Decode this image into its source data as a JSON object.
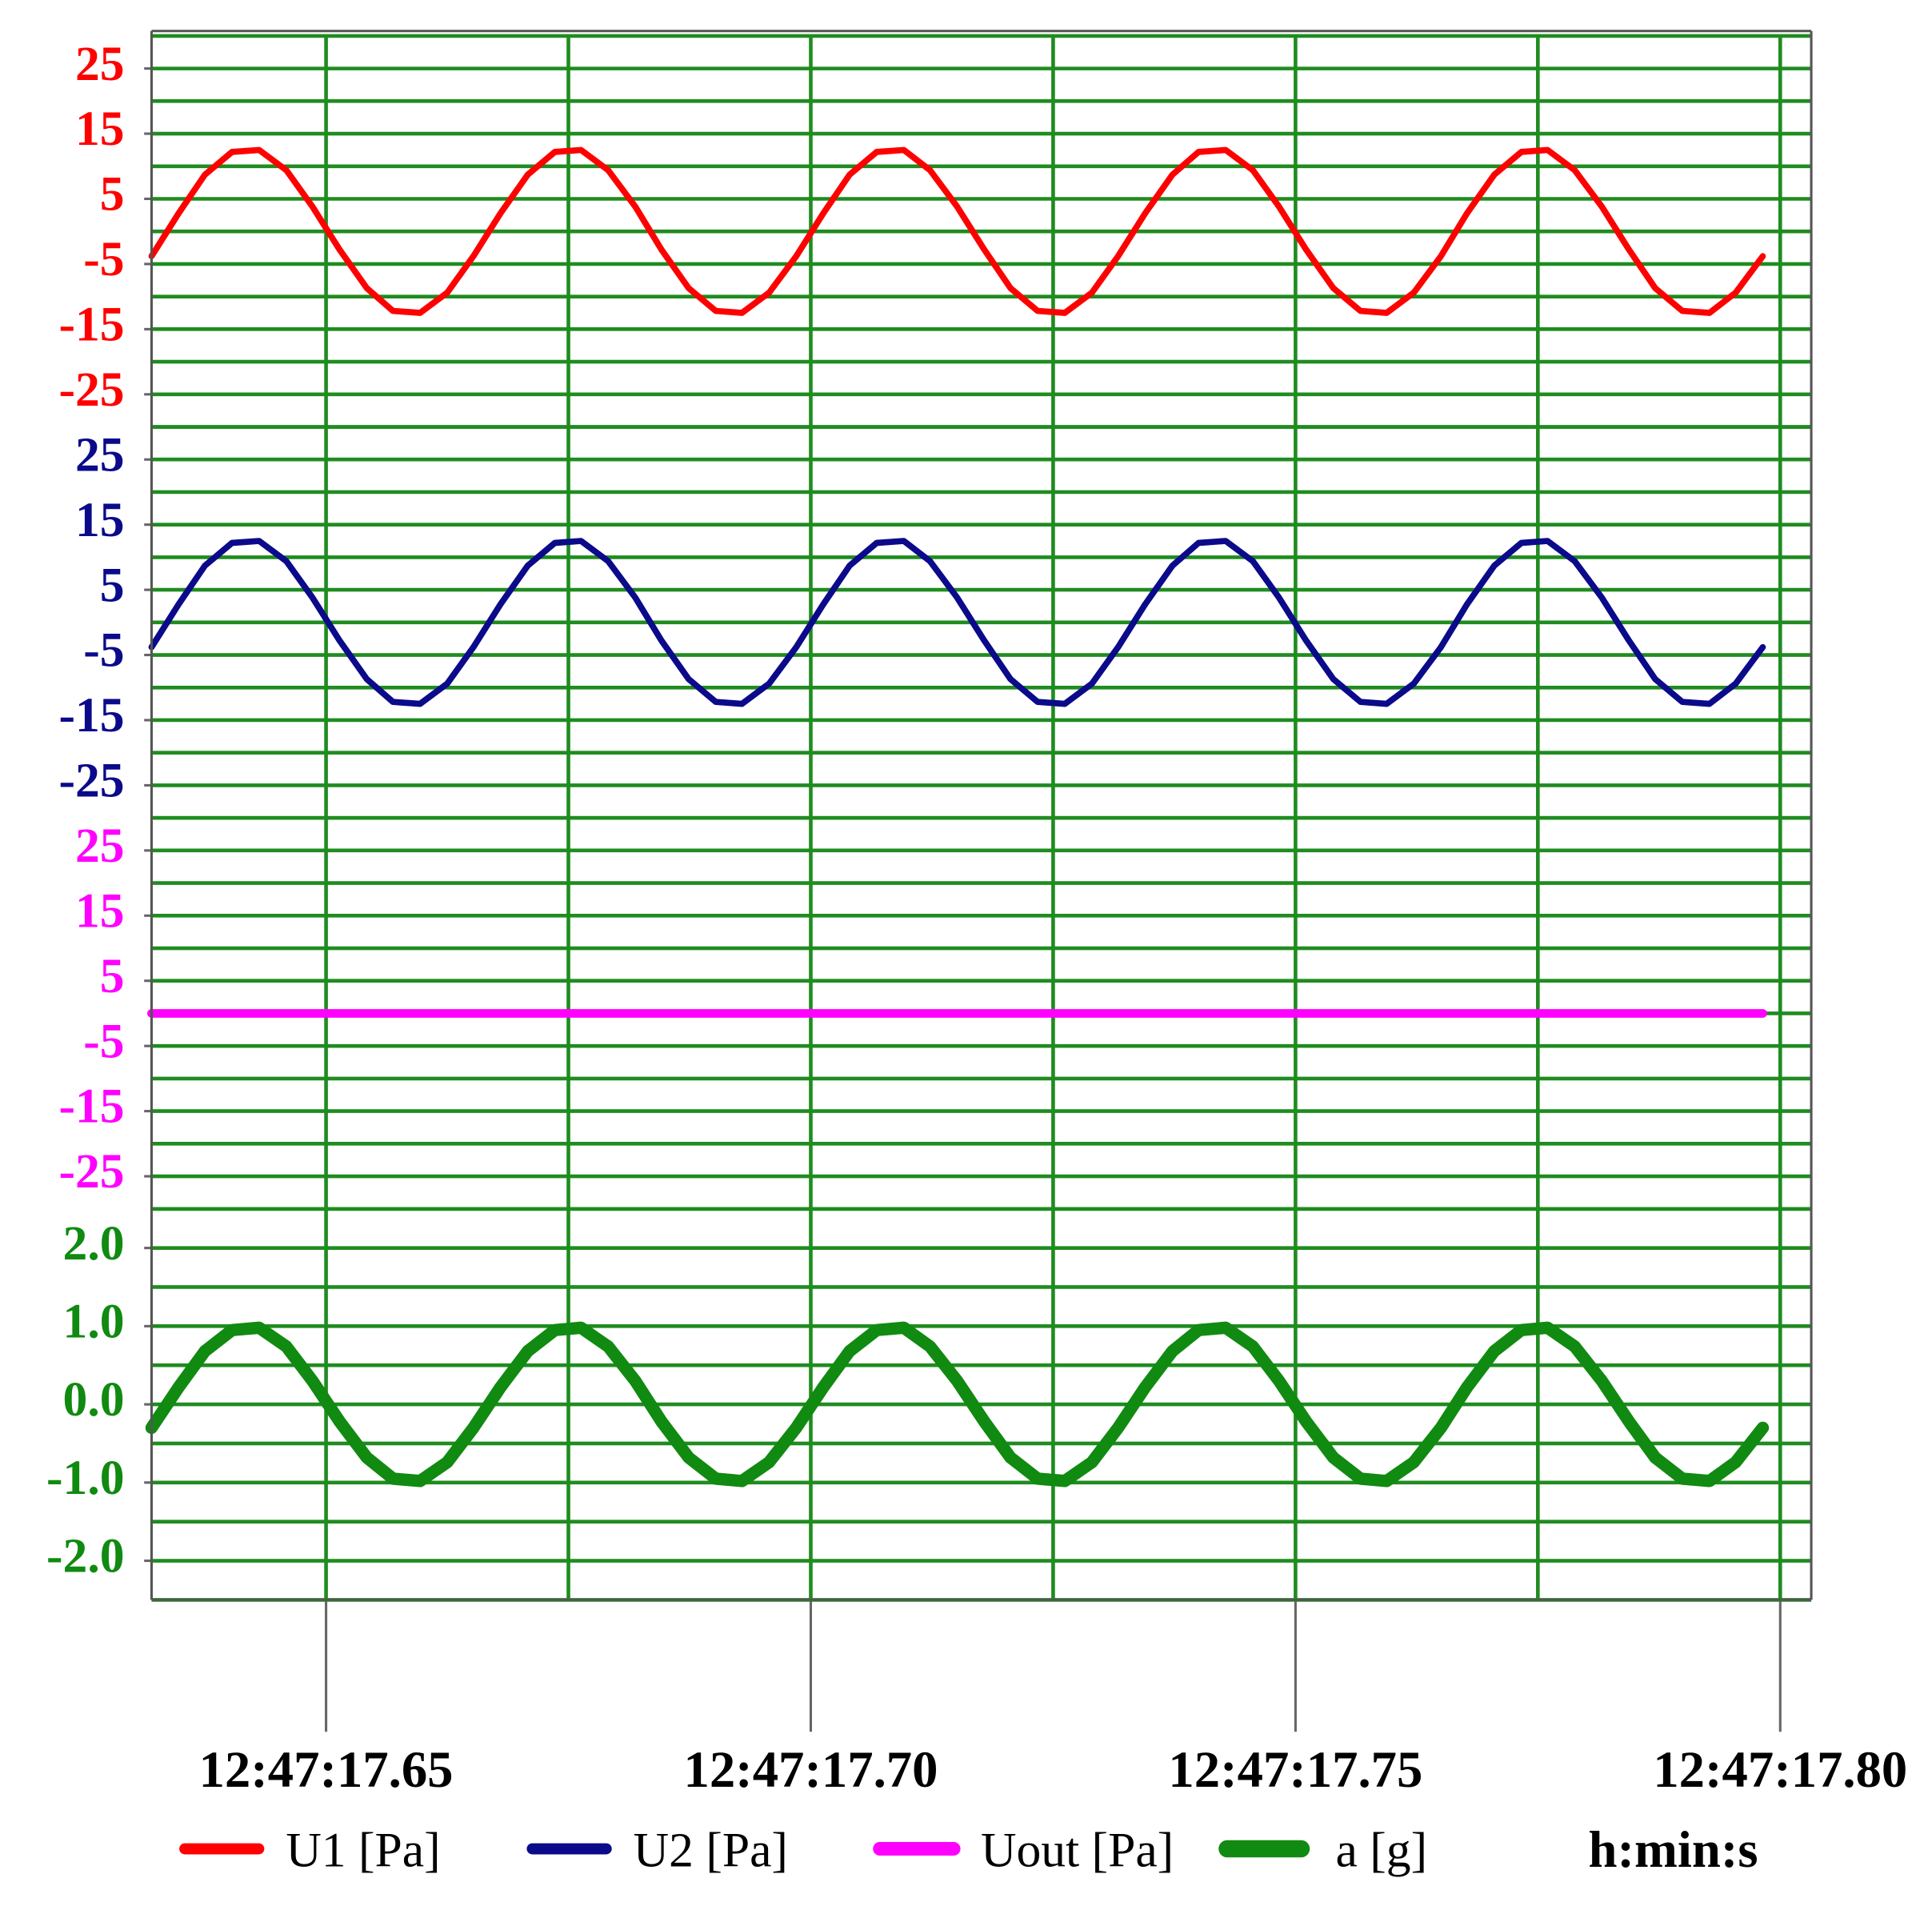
{
  "chart_data": {
    "type": "line",
    "x_label": "h:min:s",
    "x": [
      17.632,
      17.6348,
      17.6375,
      17.6403,
      17.6431,
      17.6459,
      17.6486,
      17.6514,
      17.6542,
      17.6569,
      17.6597,
      17.6625,
      17.6652,
      17.668,
      17.6708,
      17.6736,
      17.6763,
      17.6791,
      17.6819,
      17.6846,
      17.6874,
      17.6902,
      17.6929,
      17.6957,
      17.6985,
      17.7013,
      17.704,
      17.7068,
      17.7096,
      17.7123,
      17.7151,
      17.7179,
      17.7206,
      17.7234,
      17.7262,
      17.729,
      17.7317,
      17.7345,
      17.7373,
      17.74,
      17.7428,
      17.7456,
      17.7483,
      17.7511,
      17.7539,
      17.7567,
      17.7594,
      17.7622,
      17.765,
      17.7677,
      17.7705,
      17.7733,
      17.776,
      17.7788,
      17.7816,
      17.7844,
      17.7871,
      17.7899,
      17.7927,
      17.7954,
      17.7982
    ],
    "xlim": [
      17.632,
      17.8032
    ],
    "xticks": [
      {
        "value": 17.65,
        "label": "12:47:17.65"
      },
      {
        "value": 17.7,
        "label": "12:47:17.70"
      },
      {
        "value": 17.75,
        "label": "12:47:17.75"
      },
      {
        "value": 17.8,
        "label": "12:47:17.80"
      }
    ],
    "xminor": [
      17.675,
      17.725,
      17.775
    ],
    "grid": true,
    "grid_color": "#1f8c1f",
    "series": [
      {
        "name": "U1 [Pa]",
        "color": "#ff0000",
        "ylim": [
          -30,
          30
        ],
        "yticks": [
          25,
          15,
          5,
          -5,
          -15,
          -25
        ],
        "yminor": [
          30,
          20,
          10,
          0,
          -10,
          -20,
          -30
        ],
        "values": [
          -3.8,
          2.8,
          8.7,
          12.2,
          12.5,
          9.4,
          3.8,
          -2.8,
          -8.7,
          -12.2,
          -12.5,
          -9.4,
          -3.8,
          2.8,
          8.7,
          12.2,
          12.5,
          9.4,
          3.8,
          -2.8,
          -8.7,
          -12.2,
          -12.5,
          -9.4,
          -3.8,
          2.8,
          8.7,
          12.2,
          12.5,
          9.4,
          3.8,
          -2.8,
          -8.7,
          -12.2,
          -12.5,
          -9.4,
          -3.8,
          2.8,
          8.7,
          12.2,
          12.5,
          9.4,
          3.8,
          -2.8,
          -8.7,
          -12.2,
          -12.5,
          -9.4,
          -3.8,
          2.8,
          8.7,
          12.2,
          12.5,
          9.4,
          3.8,
          -2.8,
          -8.7,
          -12.2,
          -12.5,
          -9.4,
          -3.8
        ]
      },
      {
        "name": "U2 [Pa]",
        "color": "#0a0a8a",
        "ylim": [
          -30,
          30
        ],
        "yticks": [
          25,
          15,
          5,
          -5,
          -15,
          -25
        ],
        "yminor": [
          30,
          20,
          10,
          0,
          -10,
          -20,
          -30
        ],
        "values": [
          -3.8,
          2.8,
          8.7,
          12.2,
          12.5,
          9.4,
          3.8,
          -2.8,
          -8.7,
          -12.2,
          -12.5,
          -9.4,
          -3.8,
          2.8,
          8.7,
          12.2,
          12.5,
          9.4,
          3.8,
          -2.8,
          -8.7,
          -12.2,
          -12.5,
          -9.4,
          -3.8,
          2.8,
          8.7,
          12.2,
          12.5,
          9.4,
          3.8,
          -2.8,
          -8.7,
          -12.2,
          -12.5,
          -9.4,
          -3.8,
          2.8,
          8.7,
          12.2,
          12.5,
          9.4,
          3.8,
          -2.8,
          -8.7,
          -12.2,
          -12.5,
          -9.4,
          -3.8,
          2.8,
          8.7,
          12.2,
          12.5,
          9.4,
          3.8,
          -2.8,
          -8.7,
          -12.2,
          -12.5,
          -9.4,
          -3.8
        ]
      },
      {
        "name": "Uout [Pa]",
        "color": "#ff00ff",
        "ylim": [
          -30,
          30
        ],
        "yticks": [
          25,
          15,
          5,
          -5,
          -15,
          -25
        ],
        "yminor": [
          30,
          20,
          10,
          0,
          -10,
          -20,
          -30
        ],
        "values": [
          0,
          0,
          0,
          0,
          0,
          0,
          0,
          0,
          0,
          0,
          0,
          0,
          0,
          0,
          0,
          0,
          0,
          0,
          0,
          0,
          0,
          0,
          0,
          0,
          0,
          0,
          0,
          0,
          0,
          0,
          0,
          0,
          0,
          0,
          0,
          0,
          0,
          0,
          0,
          0,
          0,
          0,
          0,
          0,
          0,
          0,
          0,
          0,
          0,
          0,
          0,
          0,
          0,
          0,
          0,
          0,
          0,
          0,
          0,
          0,
          0
        ]
      },
      {
        "name": "a [g]",
        "color": "#108a10",
        "ylim": [
          -2.5,
          2.5
        ],
        "yticks": [
          {
            "value": 2,
            "label": "2.0"
          },
          {
            "value": 1,
            "label": "1.0"
          },
          {
            "value": 0,
            "label": "0.0"
          },
          {
            "value": -1,
            "label": "-1.0"
          },
          {
            "value": -2,
            "label": "-2.0"
          }
        ],
        "yminor": [
          2.5,
          1.5,
          0.5,
          -0.5,
          -1.5,
          -2.5
        ],
        "values": [
          -0.3,
          0.22,
          0.68,
          0.95,
          0.98,
          0.74,
          0.3,
          -0.22,
          -0.68,
          -0.95,
          -0.98,
          -0.74,
          -0.3,
          0.22,
          0.68,
          0.95,
          0.98,
          0.74,
          0.3,
          -0.22,
          -0.68,
          -0.95,
          -0.98,
          -0.74,
          -0.3,
          0.22,
          0.68,
          0.95,
          0.98,
          0.74,
          0.3,
          -0.22,
          -0.68,
          -0.95,
          -0.98,
          -0.74,
          -0.3,
          0.22,
          0.68,
          0.95,
          0.98,
          0.74,
          0.3,
          -0.22,
          -0.68,
          -0.95,
          -0.98,
          -0.74,
          -0.3,
          0.22,
          0.68,
          0.95,
          0.98,
          0.74,
          0.3,
          -0.22,
          -0.68,
          -0.95,
          -0.98,
          -0.74,
          -0.3
        ]
      }
    ]
  }
}
